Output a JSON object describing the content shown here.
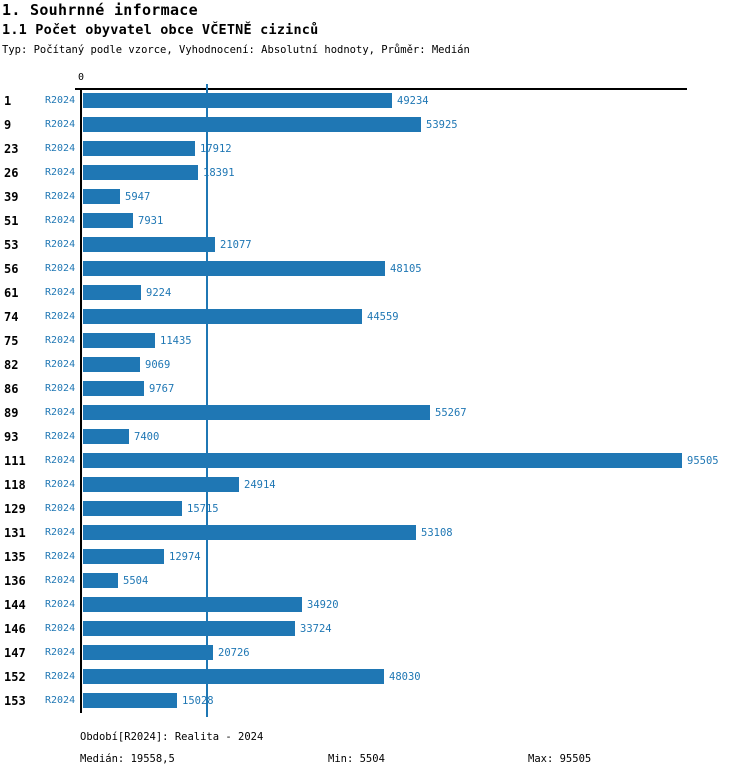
{
  "header": {
    "title1": "1. Souhrnné informace",
    "title2": "1.1 Počet obyvatel obce VČETNĚ cizinců",
    "meta": "Typ: Počítaný podle vzorce, Vyhodnocení: Absolutní hodnoty, Průměr: Medián"
  },
  "colors": {
    "bar_blue": "#1f77b4",
    "axis_black": "#000000"
  },
  "chart_data": {
    "type": "bar",
    "orientation": "horizontal",
    "title": "1.1 Počet obyvatel obce VČETNĚ cizinců",
    "series_label": "R2024",
    "categories": [
      "1",
      "9",
      "23",
      "26",
      "39",
      "51",
      "53",
      "56",
      "61",
      "74",
      "75",
      "82",
      "86",
      "89",
      "93",
      "111",
      "118",
      "129",
      "131",
      "135",
      "136",
      "144",
      "146",
      "147",
      "152",
      "153"
    ],
    "values": [
      49234,
      53925,
      17912,
      18391,
      5947,
      7931,
      21077,
      48105,
      9224,
      44559,
      11435,
      9069,
      9767,
      55267,
      7400,
      95505,
      24914,
      15715,
      53108,
      12974,
      5504,
      34920,
      33724,
      20726,
      48030,
      15028
    ],
    "xlim": [
      0,
      95505
    ],
    "x_axis_tick_label": "0",
    "median_line_value": 19558.5,
    "grid": false,
    "legend_position": "none",
    "bar_color": "#1f77b4"
  },
  "footer": {
    "period": "Období[R2024]: Realita - 2024",
    "median": "Medián: 19558,5",
    "min": "Min: 5504",
    "max": "Max: 95505"
  }
}
